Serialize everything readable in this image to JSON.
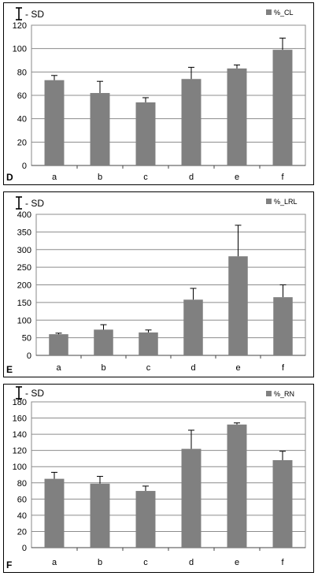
{
  "sd_legend_label": "- SD",
  "chart_data": [
    {
      "type": "bar",
      "panel_label": "D",
      "categories": [
        "a",
        "b",
        "c",
        "d",
        "e",
        "f"
      ],
      "series": [
        {
          "name": "%_CL",
          "values": [
            73,
            62,
            54,
            74,
            83,
            99
          ],
          "sd": [
            4,
            10,
            4,
            10,
            3,
            10
          ],
          "color": "#808080"
        }
      ],
      "ylim": [
        0,
        120
      ],
      "yticks": [
        0,
        20,
        40,
        60,
        80,
        100,
        120
      ],
      "grid": true,
      "legend": "top-right"
    },
    {
      "type": "bar",
      "panel_label": "E",
      "categories": [
        "a",
        "b",
        "c",
        "d",
        "e",
        "f"
      ],
      "series": [
        {
          "name": "%_LRL",
          "values": [
            60,
            73,
            65,
            158,
            281,
            165
          ],
          "sd": [
            3,
            14,
            7,
            32,
            88,
            35
          ],
          "color": "#808080"
        }
      ],
      "ylim": [
        0,
        400
      ],
      "yticks": [
        0,
        50,
        100,
        150,
        200,
        250,
        300,
        350,
        400
      ],
      "grid": true,
      "legend": "top-right"
    },
    {
      "type": "bar",
      "panel_label": "F",
      "categories": [
        "a",
        "b",
        "c",
        "d",
        "e",
        "f"
      ],
      "series": [
        {
          "name": "%_RN",
          "values": [
            85,
            79,
            70,
            122,
            152,
            108
          ],
          "sd": [
            8,
            9,
            6,
            23,
            2,
            11
          ],
          "color": "#808080"
        }
      ],
      "ylim": [
        0,
        180
      ],
      "yticks": [
        0,
        20,
        40,
        60,
        80,
        100,
        120,
        140,
        160,
        180
      ],
      "grid": true,
      "legend": "top-right"
    }
  ]
}
